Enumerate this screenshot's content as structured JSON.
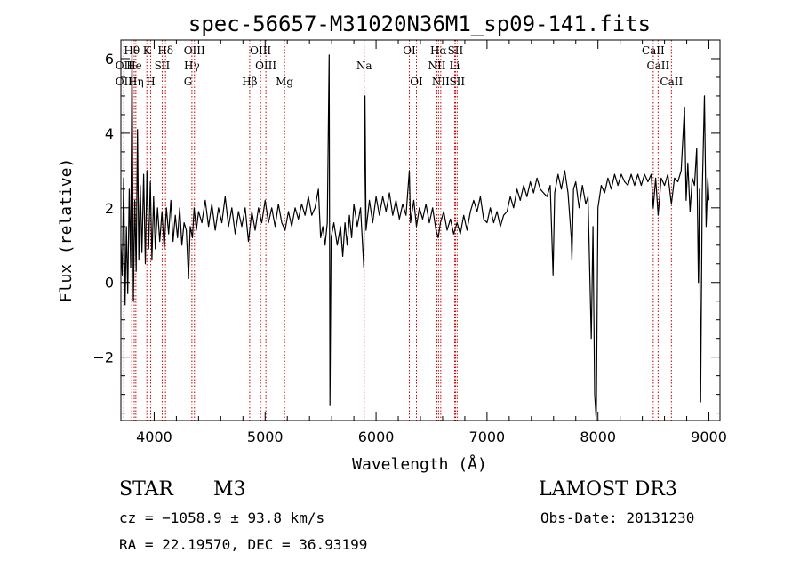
{
  "chart_data": {
    "type": "line",
    "title": "spec-56657-M31020N36M1_sp09-141.fits",
    "xlabel": "Wavelength (Å)",
    "ylabel": "Flux (relative)",
    "xlim": [
      3700,
      9100
    ],
    "ylim": [
      -3.7,
      6.5
    ],
    "xticks": [
      4000,
      5000,
      6000,
      7000,
      8000,
      9000
    ],
    "xtick_labels": [
      "4000",
      "5000",
      "6000",
      "7000",
      "8000",
      "9000"
    ],
    "yticks": [
      -2,
      0,
      2,
      4,
      6
    ],
    "ytick_labels": [
      "−2",
      "0",
      "2",
      "4",
      "6"
    ],
    "line_color": "#000000",
    "marker_color": "#cc0000",
    "spectral_lines": [
      {
        "label": "Hθ",
        "wavelength": 3798,
        "row": 0
      },
      {
        "label": "OII",
        "wavelength": 3727,
        "row": 1
      },
      {
        "label": "OII",
        "wavelength": 3727,
        "row": 2
      },
      {
        "label": "He",
        "wavelength": 3820,
        "row": 1
      },
      {
        "label": "Hη",
        "wavelength": 3835,
        "row": 2
      },
      {
        "label": "K",
        "wavelength": 3934,
        "row": 0
      },
      {
        "label": "SII",
        "wavelength": 4072,
        "row": 1
      },
      {
        "label": "H",
        "wavelength": 3968,
        "row": 2
      },
      {
        "label": "Hδ",
        "wavelength": 4102,
        "row": 0
      },
      {
        "label": "OIII",
        "wavelength": 4363,
        "row": 0
      },
      {
        "label": "Hγ",
        "wavelength": 4340,
        "row": 1
      },
      {
        "label": "G",
        "wavelength": 4305,
        "row": 2
      },
      {
        "label": "OIII",
        "wavelength": 4959,
        "row": 0
      },
      {
        "label": "OIII",
        "wavelength": 5007,
        "row": 1
      },
      {
        "label": "Hβ",
        "wavelength": 4861,
        "row": 2
      },
      {
        "label": "Mg",
        "wavelength": 5175,
        "row": 2
      },
      {
        "label": "Na",
        "wavelength": 5893,
        "row": 1
      },
      {
        "label": "OI",
        "wavelength": 6300,
        "row": 0
      },
      {
        "label": "OI",
        "wavelength": 6364,
        "row": 2
      },
      {
        "label": "Hα",
        "wavelength": 6563,
        "row": 0
      },
      {
        "label": "SII",
        "wavelength": 6716,
        "row": 0
      },
      {
        "label": "NII",
        "wavelength": 6548,
        "row": 1
      },
      {
        "label": "Li",
        "wavelength": 6708,
        "row": 1
      },
      {
        "label": "NII",
        "wavelength": 6583,
        "row": 2
      },
      {
        "label": "SII",
        "wavelength": 6731,
        "row": 2
      },
      {
        "label": "CaII",
        "wavelength": 8498,
        "row": 0
      },
      {
        "label": "CaII",
        "wavelength": 8542,
        "row": 1
      },
      {
        "label": "CaII",
        "wavelength": 8662,
        "row": 2
      }
    ],
    "series": [
      {
        "values": [
          [
            3700,
            1.0
          ],
          [
            3712,
            0.2
          ],
          [
            3725,
            2.8
          ],
          [
            3738,
            -0.6
          ],
          [
            3750,
            1.5
          ],
          [
            3762,
            -0.3
          ],
          [
            3775,
            2.5
          ],
          [
            3788,
            0.4
          ],
          [
            3800,
            6.3
          ],
          [
            3812,
            -0.5
          ],
          [
            3825,
            2.2
          ],
          [
            3838,
            0.3
          ],
          [
            3850,
            4.1
          ],
          [
            3862,
            0.6
          ],
          [
            3875,
            2.6
          ],
          [
            3890,
            0.8
          ],
          [
            3905,
            2.9
          ],
          [
            3920,
            0.5
          ],
          [
            3935,
            3.0
          ],
          [
            3950,
            0.9
          ],
          [
            3965,
            2.7
          ],
          [
            3980,
            0.6
          ],
          [
            3995,
            2.3
          ],
          [
            4010,
            0.9
          ],
          [
            4030,
            2.0
          ],
          [
            4050,
            1.1
          ],
          [
            4070,
            1.9
          ],
          [
            4090,
            0.9
          ],
          [
            4110,
            2.0
          ],
          [
            4130,
            1.3
          ],
          [
            4150,
            2.2
          ],
          [
            4170,
            1.1
          ],
          [
            4190,
            1.8
          ],
          [
            4210,
            1.2
          ],
          [
            4230,
            2.0
          ],
          [
            4250,
            1.0
          ],
          [
            4270,
            1.6
          ],
          [
            4290,
            1.4
          ],
          [
            4310,
            0.1
          ],
          [
            4325,
            1.5
          ],
          [
            4345,
            1.2
          ],
          [
            4360,
            2.0
          ],
          [
            4380,
            1.4
          ],
          [
            4400,
            1.9
          ],
          [
            4430,
            1.6
          ],
          [
            4460,
            2.2
          ],
          [
            4490,
            1.5
          ],
          [
            4520,
            2.1
          ],
          [
            4550,
            1.4
          ],
          [
            4580,
            2.0
          ],
          [
            4610,
            1.6
          ],
          [
            4640,
            2.3
          ],
          [
            4670,
            1.5
          ],
          [
            4700,
            2.0
          ],
          [
            4730,
            1.3
          ],
          [
            4760,
            1.9
          ],
          [
            4790,
            1.5
          ],
          [
            4820,
            2.0
          ],
          [
            4850,
            1.1
          ],
          [
            4880,
            1.9
          ],
          [
            4910,
            1.4
          ],
          [
            4940,
            2.0
          ],
          [
            4970,
            1.6
          ],
          [
            5000,
            2.2
          ],
          [
            5030,
            1.6
          ],
          [
            5060,
            2.0
          ],
          [
            5090,
            1.5
          ],
          [
            5120,
            2.1
          ],
          [
            5150,
            1.6
          ],
          [
            5180,
            1.4
          ],
          [
            5210,
            1.9
          ],
          [
            5240,
            1.5
          ],
          [
            5270,
            2.0
          ],
          [
            5300,
            1.7
          ],
          [
            5330,
            2.1
          ],
          [
            5360,
            1.8
          ],
          [
            5390,
            2.3
          ],
          [
            5420,
            1.8
          ],
          [
            5450,
            2.0
          ],
          [
            5480,
            2.5
          ],
          [
            5500,
            1.2
          ],
          [
            5520,
            1.5
          ],
          [
            5540,
            1.0
          ],
          [
            5560,
            1.6
          ],
          [
            5577,
            6.1
          ],
          [
            5584,
            -3.3
          ],
          [
            5595,
            1.2
          ],
          [
            5620,
            1.6
          ],
          [
            5650,
            1.0
          ],
          [
            5680,
            1.5
          ],
          [
            5700,
            0.7
          ],
          [
            5720,
            1.6
          ],
          [
            5740,
            1.0
          ],
          [
            5760,
            1.8
          ],
          [
            5780,
            1.2
          ],
          [
            5800,
            2.1
          ],
          [
            5830,
            1.5
          ],
          [
            5860,
            2.0
          ],
          [
            5890,
            0.4
          ],
          [
            5900,
            5.0
          ],
          [
            5910,
            1.4
          ],
          [
            5940,
            2.2
          ],
          [
            5970,
            1.6
          ],
          [
            6000,
            2.3
          ],
          [
            6030,
            1.8
          ],
          [
            6060,
            2.3
          ],
          [
            6090,
            1.9
          ],
          [
            6120,
            2.4
          ],
          [
            6150,
            1.8
          ],
          [
            6180,
            2.2
          ],
          [
            6210,
            1.7
          ],
          [
            6240,
            2.1
          ],
          [
            6270,
            1.8
          ],
          [
            6300,
            3.0
          ],
          [
            6310,
            1.6
          ],
          [
            6340,
            2.2
          ],
          [
            6364,
            1.5
          ],
          [
            6390,
            2.0
          ],
          [
            6420,
            1.7
          ],
          [
            6450,
            2.1
          ],
          [
            6480,
            1.6
          ],
          [
            6510,
            2.0
          ],
          [
            6540,
            1.4
          ],
          [
            6560,
            1.2
          ],
          [
            6580,
            1.6
          ],
          [
            6610,
            1.9
          ],
          [
            6640,
            1.4
          ],
          [
            6670,
            1.7
          ],
          [
            6700,
            1.3
          ],
          [
            6730,
            1.6
          ],
          [
            6760,
            1.3
          ],
          [
            6790,
            1.8
          ],
          [
            6820,
            1.4
          ],
          [
            6850,
            1.9
          ],
          [
            6880,
            2.2
          ],
          [
            6910,
            1.9
          ],
          [
            6940,
            2.3
          ],
          [
            6970,
            1.7
          ],
          [
            7000,
            1.6
          ],
          [
            7030,
            2.0
          ],
          [
            7060,
            1.6
          ],
          [
            7090,
            1.9
          ],
          [
            7120,
            1.5
          ],
          [
            7150,
            1.8
          ],
          [
            7180,
            1.9
          ],
          [
            7210,
            2.3
          ],
          [
            7240,
            2.0
          ],
          [
            7270,
            2.5
          ],
          [
            7300,
            2.2
          ],
          [
            7330,
            2.6
          ],
          [
            7360,
            2.3
          ],
          [
            7390,
            2.7
          ],
          [
            7420,
            2.4
          ],
          [
            7450,
            2.8
          ],
          [
            7480,
            2.5
          ],
          [
            7510,
            2.4
          ],
          [
            7540,
            2.3
          ],
          [
            7570,
            2.6
          ],
          [
            7595,
            0.2
          ],
          [
            7610,
            2.4
          ],
          [
            7640,
            2.9
          ],
          [
            7670,
            2.5
          ],
          [
            7700,
            3.0
          ],
          [
            7730,
            2.4
          ],
          [
            7760,
            1.2
          ],
          [
            7765,
            0.6
          ],
          [
            7780,
            2.5
          ],
          [
            7800,
            2.7
          ],
          [
            7830,
            2.0
          ],
          [
            7860,
            2.6
          ],
          [
            7890,
            2.1
          ],
          [
            7910,
            2.3
          ],
          [
            7940,
            -1.5
          ],
          [
            7955,
            1.5
          ],
          [
            7970,
            -3.0
          ],
          [
            7985,
            -3.7
          ],
          [
            8000,
            2.0
          ],
          [
            8030,
            2.6
          ],
          [
            8060,
            2.4
          ],
          [
            8090,
            2.8
          ],
          [
            8120,
            2.5
          ],
          [
            8150,
            2.9
          ],
          [
            8180,
            2.6
          ],
          [
            8210,
            2.9
          ],
          [
            8240,
            2.7
          ],
          [
            8270,
            2.6
          ],
          [
            8300,
            2.9
          ],
          [
            8330,
            2.6
          ],
          [
            8360,
            2.9
          ],
          [
            8390,
            2.6
          ],
          [
            8420,
            2.9
          ],
          [
            8450,
            2.7
          ],
          [
            8480,
            2.9
          ],
          [
            8498,
            2.0
          ],
          [
            8520,
            2.8
          ],
          [
            8542,
            1.8
          ],
          [
            8570,
            2.8
          ],
          [
            8600,
            2.6
          ],
          [
            8630,
            2.9
          ],
          [
            8662,
            2.1
          ],
          [
            8690,
            2.8
          ],
          [
            8720,
            2.7
          ],
          [
            8750,
            3.0
          ],
          [
            8780,
            4.7
          ],
          [
            8795,
            2.2
          ],
          [
            8810,
            3.2
          ],
          [
            8830,
            1.9
          ],
          [
            8850,
            2.8
          ],
          [
            8870,
            2.6
          ],
          [
            8890,
            3.6
          ],
          [
            8905,
            0.0
          ],
          [
            8915,
            2.5
          ],
          [
            8925,
            -3.2
          ],
          [
            8940,
            2.4
          ],
          [
            8960,
            5.0
          ],
          [
            8975,
            1.5
          ],
          [
            8990,
            2.8
          ],
          [
            9000,
            2.2
          ]
        ]
      }
    ]
  },
  "info": {
    "object_class": "STAR",
    "subclass": "M3",
    "survey": "LAMOST DR3",
    "cz": "cz = −1058.9 ± 93.8 km/s",
    "obs_date": "Obs-Date: 20131230",
    "radec": "RA =  22.19570, DEC =  36.93199"
  }
}
